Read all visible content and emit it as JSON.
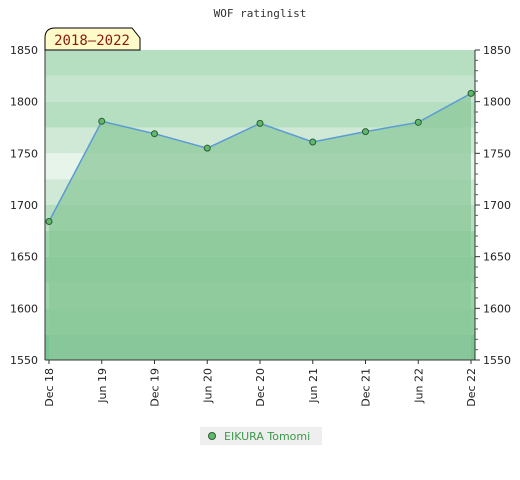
{
  "chart_data": {
    "type": "area",
    "title": "WOF ratinglist",
    "badge": "2018–2022",
    "categories": [
      "Dec 18",
      "Jun 19",
      "Dec 19",
      "Jun 20",
      "Dec 20",
      "Jun 21",
      "Dec 21",
      "Jun 22",
      "Dec 22"
    ],
    "series": [
      {
        "name": "EIKURA Tomomi",
        "values": [
          1684,
          1781,
          1769,
          1755,
          1779,
          1761,
          1771,
          1780,
          1808
        ]
      }
    ],
    "ylim": [
      1550,
      1850
    ],
    "yticks": [
      1550,
      1600,
      1650,
      1700,
      1750,
      1800,
      1850
    ],
    "grid": "horizontal bands",
    "legend_position": "bottom",
    "colors": {
      "area_fill": "#8cc89a",
      "line": "#5b9bd5",
      "marker": "#5fba6c",
      "marker_edge": "#2c5c33",
      "badge_bg": "#fffbc8",
      "badge_text": "#8a1a10",
      "legend_text": "#3a9a4a"
    }
  }
}
